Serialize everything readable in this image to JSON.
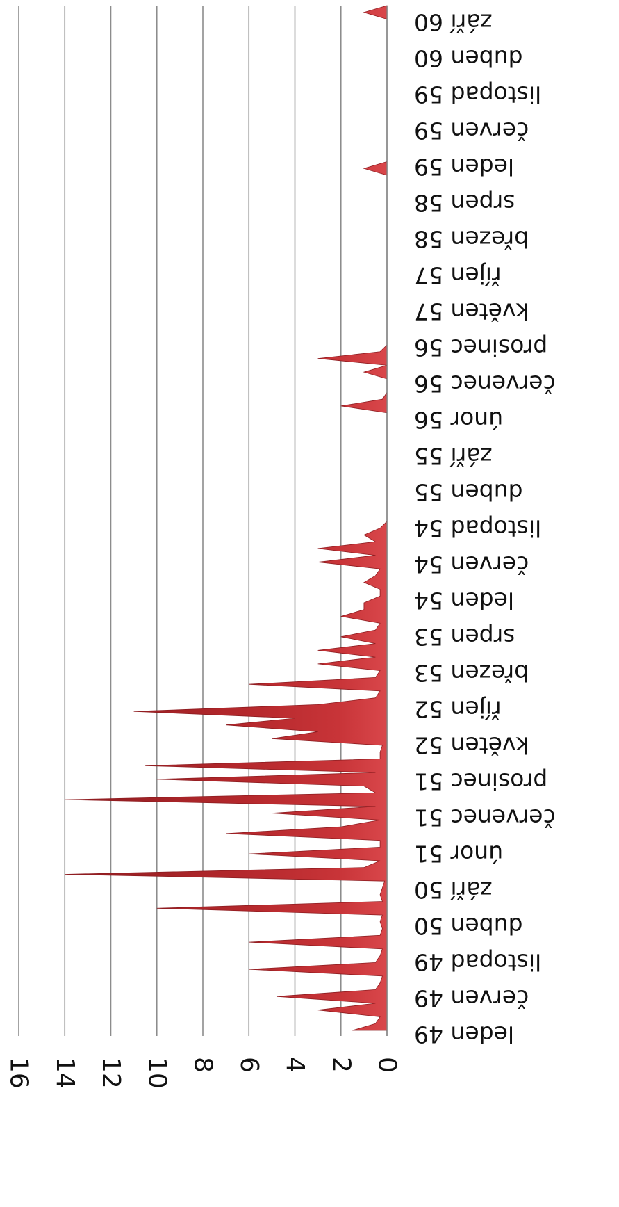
{
  "chart_data": {
    "type": "area",
    "orientation": "rotated 90° clockwise (value axis horizontal at bottom, category axis vertical)",
    "title": "",
    "xlabel": "",
    "ylabel": "",
    "ylim": [
      0,
      16
    ],
    "y_ticks": [
      "0",
      "2",
      "4",
      "6",
      "8",
      "10",
      "12",
      "14",
      "16"
    ],
    "grid": true,
    "legend": "none",
    "colors": {
      "area": "#b4282c",
      "area_dark": "#8e1c20",
      "area_light": "#d9474b",
      "grid": "#8c8c8c"
    },
    "category_labels": [
      "leden 49",
      "červen 49",
      "listopad 49",
      "duben 50",
      "září 50",
      "únor 51",
      "červenec 51",
      "prosinec 51",
      "květen 52",
      "říjen 52",
      "březen 53",
      "srpen 53",
      "leden 54",
      "červen 54",
      "listopad 54",
      "duben 55",
      "září 55",
      "únor 56",
      "červenec 56",
      "prosinec 56",
      "květen 57",
      "říjen 57",
      "březen 58",
      "srpen 58",
      "leden 59",
      "červen 59",
      "listopad 59",
      "duben 60",
      "září 60"
    ],
    "series": [
      {
        "values": [
          1.5,
          0.5,
          0.3,
          3.0,
          0.5,
          4.8,
          0.5,
          0.3,
          0.2,
          6.0,
          0.5,
          0.3,
          0.2,
          6.0,
          0.3,
          0.2,
          0.3,
          0.2,
          10.0,
          0.2,
          0.3,
          0.2,
          0.1,
          14.0,
          1.0,
          0.3,
          6.0,
          0.3,
          0.3,
          7.0,
          2.0,
          0.3,
          5.0,
          0.5,
          14.0,
          0.5,
          1.0,
          10.0,
          0.5,
          10.5,
          0.3,
          0.3,
          0.2,
          5.0,
          3.0,
          7.0,
          4.0,
          11.0,
          3.0,
          0.5,
          0.3,
          6.0,
          0.5,
          0.3,
          3.0,
          0.5,
          3.0,
          0.5,
          2.0,
          0.5,
          0.3,
          2.0,
          1.0,
          1.0,
          0.3,
          0.3,
          1.0,
          0.5,
          0.3,
          3.0,
          0.5,
          3.0,
          0.5,
          1.0,
          0.3,
          0,
          0,
          0,
          0,
          0,
          0,
          0,
          0,
          0,
          0,
          0,
          0,
          0,
          0,
          0,
          0,
          0,
          2.0,
          0.2,
          0,
          0,
          0,
          1.0,
          0,
          3.0,
          0.3,
          0,
          0,
          0,
          0,
          0,
          0,
          0,
          0,
          0,
          0,
          0,
          0,
          0,
          0,
          0,
          0,
          0,
          0,
          0,
          0,
          0,
          0,
          0,
          0,
          0,
          0,
          1.0,
          0,
          0,
          0,
          0,
          0,
          0,
          0,
          0,
          0,
          0,
          0,
          0,
          0,
          0,
          0,
          0,
          0,
          0,
          0,
          0,
          0,
          0,
          1.0,
          0
        ]
      }
    ]
  }
}
